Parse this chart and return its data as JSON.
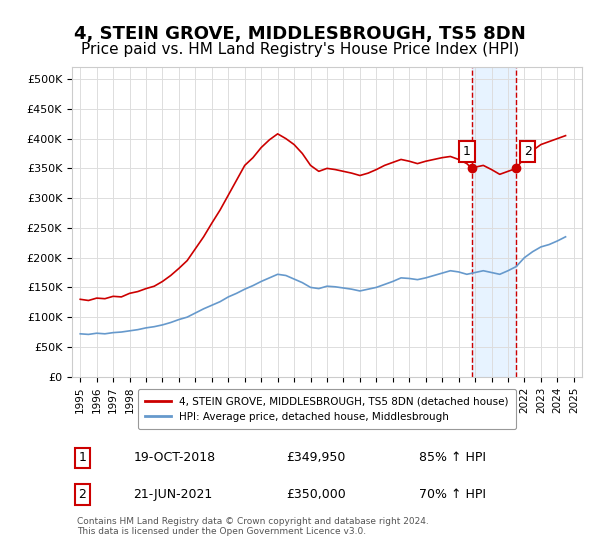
{
  "title": "4, STEIN GROVE, MIDDLESBROUGH, TS5 8DN",
  "subtitle": "Price paid vs. HM Land Registry's House Price Index (HPI)",
  "title_fontsize": 13,
  "subtitle_fontsize": 11,
  "background_color": "#ffffff",
  "plot_bg_color": "#ffffff",
  "grid_color": "#dddddd",
  "red_line_color": "#cc0000",
  "blue_line_color": "#6699cc",
  "highlight_bg_color": "#ddeeff",
  "vline_color": "#cc0000",
  "marker1_x": 2018.8,
  "marker2_x": 2021.5,
  "marker1_y": 349950,
  "marker2_y": 350000,
  "legend_label_red": "4, STEIN GROVE, MIDDLESBROUGH, TS5 8DN (detached house)",
  "legend_label_blue": "HPI: Average price, detached house, Middlesbrough",
  "footer_text": "Contains HM Land Registry data © Crown copyright and database right 2024.\nThis data is licensed under the Open Government Licence v3.0.",
  "table_rows": [
    [
      "1",
      "19-OCT-2018",
      "£349,950",
      "85% ↑ HPI"
    ],
    [
      "2",
      "21-JUN-2021",
      "£350,000",
      "70% ↑ HPI"
    ]
  ],
  "ylim": [
    0,
    520000
  ],
  "yticks": [
    0,
    50000,
    100000,
    150000,
    200000,
    250000,
    300000,
    350000,
    400000,
    450000,
    500000
  ],
  "ytick_labels": [
    "£0",
    "£50K",
    "£100K",
    "£150K",
    "£200K",
    "£250K",
    "£300K",
    "£350K",
    "£400K",
    "£450K",
    "£500K"
  ],
  "xtick_start": 1995,
  "xtick_end": 2025,
  "red_data_x": [
    1995.0,
    1995.5,
    1996.0,
    1996.5,
    1997.0,
    1997.5,
    1998.0,
    1998.5,
    1999.0,
    1999.5,
    2000.0,
    2000.5,
    2001.0,
    2001.5,
    2002.0,
    2002.5,
    2003.0,
    2003.5,
    2004.0,
    2004.5,
    2005.0,
    2005.5,
    2006.0,
    2006.5,
    2007.0,
    2007.5,
    2008.0,
    2008.5,
    2009.0,
    2009.5,
    2010.0,
    2010.5,
    2011.0,
    2011.5,
    2012.0,
    2012.5,
    2013.0,
    2013.5,
    2014.0,
    2014.5,
    2015.0,
    2015.5,
    2016.0,
    2016.5,
    2017.0,
    2017.5,
    2018.0,
    2018.5,
    2018.8,
    2019.0,
    2019.5,
    2020.0,
    2020.5,
    2021.0,
    2021.5,
    2021.5,
    2022.0,
    2022.5,
    2023.0,
    2023.5,
    2024.0,
    2024.5
  ],
  "red_data_y": [
    130000,
    128000,
    132000,
    131000,
    135000,
    134000,
    140000,
    143000,
    148000,
    152000,
    160000,
    170000,
    182000,
    195000,
    215000,
    235000,
    258000,
    280000,
    305000,
    330000,
    355000,
    368000,
    385000,
    398000,
    408000,
    400000,
    390000,
    375000,
    355000,
    345000,
    350000,
    348000,
    345000,
    342000,
    338000,
    342000,
    348000,
    355000,
    360000,
    365000,
    362000,
    358000,
    362000,
    365000,
    368000,
    370000,
    365000,
    358000,
    349950,
    352000,
    355000,
    348000,
    340000,
    345000,
    350000,
    350000,
    368000,
    380000,
    390000,
    395000,
    400000,
    405000
  ],
  "blue_data_x": [
    1995.0,
    1995.5,
    1996.0,
    1996.5,
    1997.0,
    1997.5,
    1998.0,
    1998.5,
    1999.0,
    1999.5,
    2000.0,
    2000.5,
    2001.0,
    2001.5,
    2002.0,
    2002.5,
    2003.0,
    2003.5,
    2004.0,
    2004.5,
    2005.0,
    2005.5,
    2006.0,
    2006.5,
    2007.0,
    2007.5,
    2008.0,
    2008.5,
    2009.0,
    2009.5,
    2010.0,
    2010.5,
    2011.0,
    2011.5,
    2012.0,
    2012.5,
    2013.0,
    2013.5,
    2014.0,
    2014.5,
    2015.0,
    2015.5,
    2016.0,
    2016.5,
    2017.0,
    2017.5,
    2018.0,
    2018.5,
    2019.0,
    2019.5,
    2020.0,
    2020.5,
    2021.0,
    2021.5,
    2022.0,
    2022.5,
    2023.0,
    2023.5,
    2024.0,
    2024.5
  ],
  "blue_data_y": [
    72000,
    71000,
    73000,
    72000,
    74000,
    75000,
    77000,
    79000,
    82000,
    84000,
    87000,
    91000,
    96000,
    100000,
    107000,
    114000,
    120000,
    126000,
    134000,
    140000,
    147000,
    153000,
    160000,
    166000,
    172000,
    170000,
    164000,
    158000,
    150000,
    148000,
    152000,
    151000,
    149000,
    147000,
    144000,
    147000,
    150000,
    155000,
    160000,
    166000,
    165000,
    163000,
    166000,
    170000,
    174000,
    178000,
    176000,
    172000,
    175000,
    178000,
    175000,
    172000,
    178000,
    185000,
    200000,
    210000,
    218000,
    222000,
    228000,
    235000
  ]
}
